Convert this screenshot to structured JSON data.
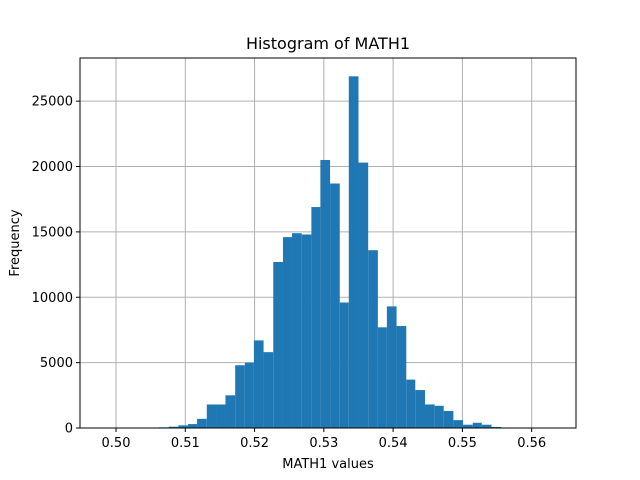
{
  "chart_data": {
    "type": "bar",
    "title": "Histogram of MATH1",
    "xlabel": "MATH1 values",
    "ylabel": "Frequency",
    "grid": true,
    "bar_color": "#1f77b4",
    "grid_color": "#b0b0b0",
    "xlim": [
      0.4948,
      0.5664
    ],
    "ylim": [
      0,
      28300
    ],
    "x_ticks": [
      0.5,
      0.51,
      0.52,
      0.53,
      0.54,
      0.55,
      0.56
    ],
    "x_tick_labels": [
      "0.50",
      "0.51",
      "0.52",
      "0.53",
      "0.54",
      "0.55",
      "0.56"
    ],
    "y_ticks": [
      0,
      5000,
      10000,
      15000,
      20000,
      25000
    ],
    "y_tick_labels": [
      "0",
      "5000",
      "10000",
      "15000",
      "20000",
      "25000"
    ],
    "bin_edges": [
      0.498,
      0.4994,
      0.5008,
      0.5021,
      0.5035,
      0.5049,
      0.5062,
      0.5076,
      0.509,
      0.5104,
      0.5117,
      0.5131,
      0.5145,
      0.5158,
      0.5172,
      0.5186,
      0.5199,
      0.5213,
      0.5227,
      0.5241,
      0.5254,
      0.5268,
      0.5282,
      0.5295,
      0.5309,
      0.5323,
      0.5336,
      0.535,
      0.5364,
      0.5378,
      0.5391,
      0.5405,
      0.5419,
      0.5432,
      0.5446,
      0.546,
      0.5473,
      0.5487,
      0.5501,
      0.5515,
      0.5528,
      0.5542,
      0.5556,
      0.5569,
      0.5583,
      0.5597,
      0.561,
      0.5624,
      0.5638,
      0.5652
    ],
    "values": [
      0,
      0,
      0,
      0,
      0,
      0,
      50,
      100,
      200,
      300,
      700,
      1800,
      1800,
      2500,
      4800,
      5000,
      6700,
      5800,
      12700,
      14600,
      14900,
      14800,
      16900,
      20500,
      18700,
      9600,
      26900,
      20300,
      13600,
      7700,
      9300,
      7800,
      3700,
      2900,
      1800,
      1700,
      1300,
      600,
      250,
      400,
      250,
      80,
      30,
      10,
      0,
      0,
      0,
      0,
      0
    ]
  }
}
